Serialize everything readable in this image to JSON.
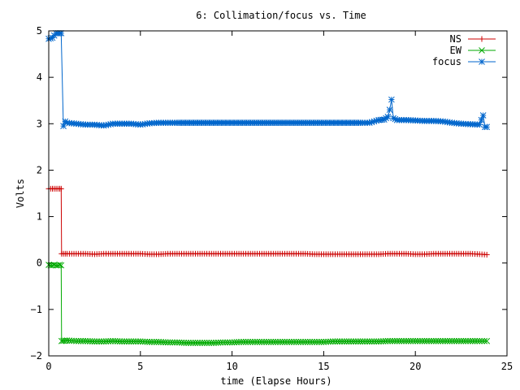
{
  "chart_data": {
    "type": "line",
    "title": "6: Collimation/focus vs. Time",
    "xlabel": "time (Elapse Hours)",
    "ylabel": "Volts",
    "xlim": [
      0,
      25
    ],
    "ylim": [
      -2,
      5
    ],
    "x_ticks": [
      "0",
      "5",
      "10",
      "15",
      "20",
      "25"
    ],
    "y_ticks": [
      "−2",
      "−1",
      "0",
      "1",
      "2",
      "3",
      "4",
      "5"
    ],
    "grid": false,
    "legend_position": "top-right",
    "series": [
      {
        "name": "NS",
        "color": "#cc0000",
        "marker": "plus",
        "points": [
          [
            0.0,
            1.6
          ],
          [
            0.1,
            1.6
          ],
          [
            0.2,
            1.6
          ],
          [
            0.3,
            1.6
          ],
          [
            0.4,
            1.6
          ],
          [
            0.5,
            1.6
          ],
          [
            0.6,
            1.6
          ],
          [
            0.68,
            1.6
          ],
          [
            0.7,
            0.2
          ],
          [
            1.0,
            0.2
          ],
          [
            1.5,
            0.2
          ],
          [
            2.0,
            0.2
          ],
          [
            2.5,
            0.19
          ],
          [
            3.0,
            0.2
          ],
          [
            3.5,
            0.2
          ],
          [
            4.0,
            0.2
          ],
          [
            4.5,
            0.2
          ],
          [
            5.0,
            0.2
          ],
          [
            5.5,
            0.19
          ],
          [
            6.0,
            0.19
          ],
          [
            6.5,
            0.2
          ],
          [
            7.0,
            0.2
          ],
          [
            7.5,
            0.2
          ],
          [
            8.0,
            0.2
          ],
          [
            8.5,
            0.2
          ],
          [
            9.0,
            0.2
          ],
          [
            9.5,
            0.2
          ],
          [
            10.0,
            0.2
          ],
          [
            10.5,
            0.2
          ],
          [
            11.0,
            0.2
          ],
          [
            11.5,
            0.2
          ],
          [
            12.0,
            0.2
          ],
          [
            12.5,
            0.2
          ],
          [
            13.0,
            0.2
          ],
          [
            13.5,
            0.2
          ],
          [
            14.0,
            0.2
          ],
          [
            14.5,
            0.19
          ],
          [
            15.0,
            0.19
          ],
          [
            15.5,
            0.19
          ],
          [
            16.0,
            0.19
          ],
          [
            16.5,
            0.19
          ],
          [
            17.0,
            0.19
          ],
          [
            17.5,
            0.19
          ],
          [
            18.0,
            0.19
          ],
          [
            18.5,
            0.2
          ],
          [
            19.0,
            0.2
          ],
          [
            19.5,
            0.2
          ],
          [
            20.0,
            0.19
          ],
          [
            20.5,
            0.19
          ],
          [
            21.0,
            0.2
          ],
          [
            21.5,
            0.2
          ],
          [
            22.0,
            0.2
          ],
          [
            22.5,
            0.2
          ],
          [
            23.0,
            0.2
          ],
          [
            23.5,
            0.19
          ],
          [
            23.9,
            0.18
          ]
        ]
      },
      {
        "name": "EW",
        "color": "#00aa00",
        "marker": "cross",
        "points": [
          [
            0.0,
            -0.04
          ],
          [
            0.1,
            -0.05
          ],
          [
            0.2,
            -0.05
          ],
          [
            0.3,
            -0.04
          ],
          [
            0.4,
            -0.05
          ],
          [
            0.5,
            -0.05
          ],
          [
            0.6,
            -0.04
          ],
          [
            0.68,
            -0.05
          ],
          [
            0.7,
            -1.68
          ],
          [
            1.0,
            -1.67
          ],
          [
            1.5,
            -1.68
          ],
          [
            2.0,
            -1.68
          ],
          [
            2.5,
            -1.69
          ],
          [
            3.0,
            -1.69
          ],
          [
            3.5,
            -1.68
          ],
          [
            4.0,
            -1.69
          ],
          [
            4.5,
            -1.69
          ],
          [
            5.0,
            -1.69
          ],
          [
            5.5,
            -1.7
          ],
          [
            6.0,
            -1.7
          ],
          [
            6.5,
            -1.71
          ],
          [
            7.0,
            -1.71
          ],
          [
            7.5,
            -1.72
          ],
          [
            8.0,
            -1.72
          ],
          [
            8.5,
            -1.72
          ],
          [
            9.0,
            -1.72
          ],
          [
            9.5,
            -1.71
          ],
          [
            10.0,
            -1.71
          ],
          [
            10.5,
            -1.7
          ],
          [
            11.0,
            -1.7
          ],
          [
            11.5,
            -1.7
          ],
          [
            12.0,
            -1.7
          ],
          [
            12.5,
            -1.7
          ],
          [
            13.0,
            -1.7
          ],
          [
            13.5,
            -1.7
          ],
          [
            14.0,
            -1.7
          ],
          [
            14.5,
            -1.7
          ],
          [
            15.0,
            -1.7
          ],
          [
            15.5,
            -1.69
          ],
          [
            16.0,
            -1.69
          ],
          [
            16.5,
            -1.69
          ],
          [
            17.0,
            -1.69
          ],
          [
            17.5,
            -1.69
          ],
          [
            18.0,
            -1.69
          ],
          [
            18.5,
            -1.68
          ],
          [
            19.0,
            -1.68
          ],
          [
            19.5,
            -1.68
          ],
          [
            20.0,
            -1.68
          ],
          [
            20.5,
            -1.68
          ],
          [
            21.0,
            -1.68
          ],
          [
            21.5,
            -1.68
          ],
          [
            22.0,
            -1.68
          ],
          [
            22.5,
            -1.68
          ],
          [
            23.0,
            -1.68
          ],
          [
            23.5,
            -1.68
          ],
          [
            23.9,
            -1.68
          ]
        ]
      },
      {
        "name": "focus",
        "color": "#0066cc",
        "marker": "star",
        "points": [
          [
            0.0,
            4.83
          ],
          [
            0.1,
            4.84
          ],
          [
            0.2,
            4.85
          ],
          [
            0.3,
            4.9
          ],
          [
            0.4,
            4.95
          ],
          [
            0.5,
            4.95
          ],
          [
            0.6,
            4.95
          ],
          [
            0.68,
            4.95
          ],
          [
            0.8,
            2.95
          ],
          [
            0.9,
            3.05
          ],
          [
            1.0,
            3.02
          ],
          [
            1.5,
            3.0
          ],
          [
            2.0,
            2.98
          ],
          [
            2.5,
            2.98
          ],
          [
            3.0,
            2.96
          ],
          [
            3.5,
            3.0
          ],
          [
            4.0,
            3.0
          ],
          [
            4.5,
            3.0
          ],
          [
            5.0,
            2.98
          ],
          [
            5.5,
            3.01
          ],
          [
            6.0,
            3.02
          ],
          [
            6.5,
            3.02
          ],
          [
            7.0,
            3.02
          ],
          [
            8.0,
            3.02
          ],
          [
            9.0,
            3.02
          ],
          [
            10.0,
            3.02
          ],
          [
            11.0,
            3.02
          ],
          [
            12.0,
            3.02
          ],
          [
            13.0,
            3.02
          ],
          [
            14.0,
            3.02
          ],
          [
            15.0,
            3.02
          ],
          [
            16.0,
            3.02
          ],
          [
            17.0,
            3.02
          ],
          [
            17.5,
            3.02
          ],
          [
            18.0,
            3.08
          ],
          [
            18.3,
            3.09
          ],
          [
            18.5,
            3.15
          ],
          [
            18.6,
            3.3
          ],
          [
            18.7,
            3.52
          ],
          [
            18.8,
            3.12
          ],
          [
            19.0,
            3.08
          ],
          [
            19.5,
            3.08
          ],
          [
            20.0,
            3.07
          ],
          [
            20.5,
            3.06
          ],
          [
            21.0,
            3.06
          ],
          [
            21.5,
            3.05
          ],
          [
            22.0,
            3.02
          ],
          [
            22.5,
            3.0
          ],
          [
            23.0,
            2.99
          ],
          [
            23.5,
            2.98
          ],
          [
            23.7,
            3.18
          ],
          [
            23.8,
            2.93
          ],
          [
            23.9,
            2.93
          ]
        ]
      }
    ]
  }
}
